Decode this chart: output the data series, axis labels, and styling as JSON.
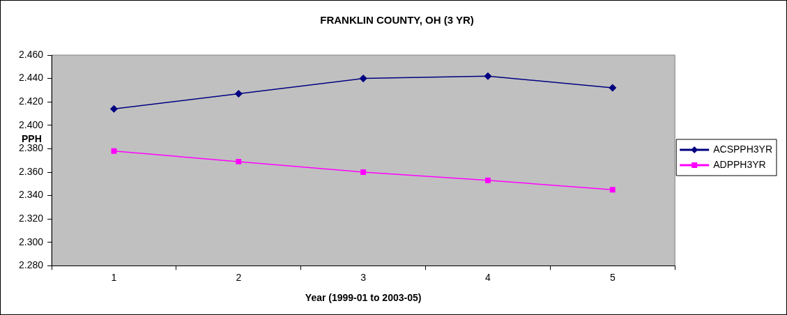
{
  "chart_data": {
    "type": "line",
    "title": "FRANKLIN COUNTY, OH (3 YR)",
    "xlabel": "Year (1999-01 to 2003-05)",
    "ylabel": "PPH",
    "categories": [
      "1",
      "2",
      "3",
      "4",
      "5"
    ],
    "series": [
      {
        "name": "ACSPPH3YR",
        "color": "#000080",
        "marker": "diamond",
        "values": [
          2.414,
          2.427,
          2.44,
          2.442,
          2.432
        ]
      },
      {
        "name": "ADPPH3YR",
        "color": "#ff00ff",
        "marker": "square",
        "values": [
          2.378,
          2.369,
          2.36,
          2.353,
          2.345
        ]
      }
    ],
    "ylim": [
      2.28,
      2.46
    ],
    "yticks": [
      {
        "value": 2.28,
        "label": "2.280"
      },
      {
        "value": 2.3,
        "label": "2.300"
      },
      {
        "value": 2.32,
        "label": "2.320"
      },
      {
        "value": 2.34,
        "label": "2.340"
      },
      {
        "value": 2.36,
        "label": "2.360"
      },
      {
        "value": 2.38,
        "label": "2.380"
      },
      {
        "value": 2.4,
        "label": "2.400"
      },
      {
        "value": 2.42,
        "label": "2.420"
      },
      {
        "value": 2.44,
        "label": "2.440"
      },
      {
        "value": 2.46,
        "label": "2.460"
      }
    ],
    "grid": false,
    "legend": "right",
    "line_style": "solid"
  }
}
